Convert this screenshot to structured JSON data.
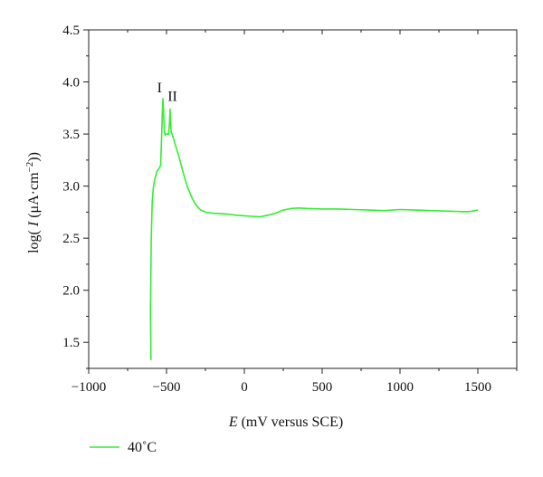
{
  "chart_data": {
    "type": "line",
    "title": "",
    "xlabel": {
      "italic": "E",
      "rest": " (mV versus SCE)"
    },
    "ylabel": {
      "prefix": "log( ",
      "italic": "I",
      "unit": " (μA·cm",
      "exp": "−2",
      "suffix": "))"
    },
    "xlim": [
      -1000,
      1750
    ],
    "ylim": [
      1.25,
      4.5
    ],
    "xticks": [
      -1000,
      -500,
      0,
      500,
      1000,
      1500
    ],
    "xtick_labels": [
      "−1000",
      "−500",
      "0",
      "500",
      "1000",
      "1500"
    ],
    "yticks": [
      1.5,
      2.0,
      2.5,
      3.0,
      3.5,
      4.0,
      4.5
    ],
    "ytick_labels": [
      "1.5",
      "2.0",
      "2.5",
      "3.0",
      "3.5",
      "4.0",
      "4.5"
    ],
    "grid": false,
    "legend_position": "bottom-left",
    "series": [
      {
        "name": "40˚C",
        "color": "#33ee33",
        "points": [
          [
            -600,
            1.33
          ],
          [
            -603,
            1.8
          ],
          [
            -598,
            2.5
          ],
          [
            -592,
            2.85
          ],
          [
            -585,
            2.98
          ],
          [
            -575,
            3.07
          ],
          [
            -562,
            3.14
          ],
          [
            -548,
            3.17
          ],
          [
            -538,
            3.2
          ],
          [
            -532,
            3.45
          ],
          [
            -527,
            3.7
          ],
          [
            -523,
            3.84
          ],
          [
            -519,
            3.7
          ],
          [
            -514,
            3.52
          ],
          [
            -508,
            3.49
          ],
          [
            -498,
            3.5
          ],
          [
            -487,
            3.5
          ],
          [
            -481,
            3.6
          ],
          [
            -477,
            3.74
          ],
          [
            -474,
            3.6
          ],
          [
            -470,
            3.52
          ],
          [
            -460,
            3.48
          ],
          [
            -440,
            3.38
          ],
          [
            -420,
            3.28
          ],
          [
            -400,
            3.17
          ],
          [
            -380,
            3.06
          ],
          [
            -360,
            2.97
          ],
          [
            -340,
            2.9
          ],
          [
            -320,
            2.84
          ],
          [
            -300,
            2.8
          ],
          [
            -280,
            2.77
          ],
          [
            -250,
            2.75
          ],
          [
            -200,
            2.74
          ],
          [
            -150,
            2.735
          ],
          [
            -100,
            2.73
          ],
          [
            -50,
            2.72
          ],
          [
            0,
            2.715
          ],
          [
            50,
            2.71
          ],
          [
            100,
            2.705
          ],
          [
            150,
            2.72
          ],
          [
            200,
            2.74
          ],
          [
            250,
            2.77
          ],
          [
            300,
            2.785
          ],
          [
            350,
            2.79
          ],
          [
            400,
            2.785
          ],
          [
            500,
            2.78
          ],
          [
            600,
            2.78
          ],
          [
            700,
            2.775
          ],
          [
            800,
            2.77
          ],
          [
            900,
            2.765
          ],
          [
            1000,
            2.775
          ],
          [
            1100,
            2.77
          ],
          [
            1200,
            2.765
          ],
          [
            1300,
            2.76
          ],
          [
            1400,
            2.755
          ],
          [
            1450,
            2.755
          ],
          [
            1500,
            2.77
          ]
        ]
      }
    ],
    "annotations": [
      {
        "text": "I",
        "x": -545,
        "y": 3.9
      },
      {
        "text": "II",
        "x": -462,
        "y": 3.82
      }
    ]
  }
}
